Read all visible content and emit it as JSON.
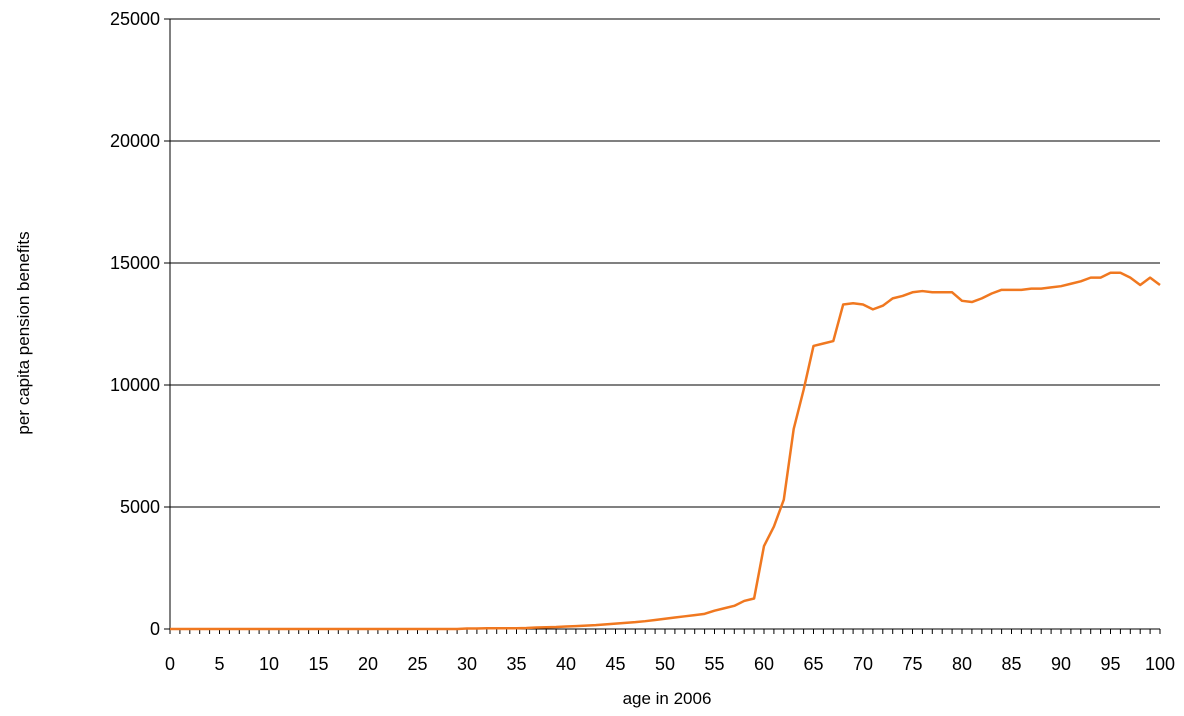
{
  "chart_data": {
    "type": "line",
    "title": "",
    "xlabel": "age in 2006",
    "ylabel": "per capita pension benefits",
    "xlim": [
      0,
      100
    ],
    "ylim": [
      0,
      25000
    ],
    "x_ticks": [
      0,
      5,
      10,
      15,
      20,
      25,
      30,
      35,
      40,
      45,
      50,
      55,
      60,
      65,
      70,
      75,
      80,
      85,
      90,
      95,
      100
    ],
    "y_ticks": [
      0,
      5000,
      10000,
      15000,
      20000,
      25000
    ],
    "grid": "horizontal",
    "legend": "none",
    "colors": {
      "series": "#f07820",
      "grid": "#000000",
      "axis": "#000000"
    },
    "series": [
      {
        "x": [
          0,
          1,
          2,
          3,
          4,
          5,
          6,
          7,
          8,
          9,
          10,
          11,
          12,
          13,
          14,
          15,
          16,
          17,
          18,
          19,
          20,
          21,
          22,
          23,
          24,
          25,
          26,
          27,
          28,
          29,
          30,
          31,
          32,
          33,
          34,
          35,
          36,
          37,
          38,
          39,
          40,
          41,
          42,
          43,
          44,
          45,
          46,
          47,
          48,
          49,
          50,
          51,
          52,
          53,
          54,
          55,
          56,
          57,
          58,
          59,
          60,
          61,
          62,
          63,
          64,
          65,
          66,
          67,
          68,
          69,
          70,
          71,
          72,
          73,
          74,
          75,
          76,
          77,
          78,
          79,
          80,
          81,
          82,
          83,
          84,
          85,
          86,
          87,
          88,
          89,
          90,
          91,
          92,
          93,
          94,
          95,
          96,
          97,
          98,
          99,
          100
        ],
        "values": [
          0,
          0,
          0,
          0,
          0,
          0,
          0,
          0,
          0,
          0,
          0,
          0,
          0,
          0,
          0,
          0,
          0,
          0,
          0,
          0,
          0,
          0,
          0,
          0,
          0,
          0,
          0,
          0,
          0,
          0,
          20,
          20,
          30,
          30,
          30,
          30,
          40,
          60,
          70,
          80,
          100,
          120,
          140,
          160,
          190,
          220,
          250,
          280,
          320,
          370,
          420,
          470,
          520,
          570,
          620,
          750,
          850,
          950,
          1150,
          1250,
          3400,
          4200,
          5300,
          8200,
          9800,
          11600,
          11700,
          11800,
          13300,
          13350,
          13300,
          13100,
          13250,
          13550,
          13650,
          13800,
          13850,
          13800,
          13800,
          13800,
          13450,
          13400,
          13550,
          13750,
          13900,
          13900,
          13900,
          13950,
          13950,
          14000,
          14050,
          14150,
          14250,
          14400,
          14400,
          14600,
          14600,
          14400,
          14100,
          14400,
          14100
        ]
      }
    ]
  }
}
